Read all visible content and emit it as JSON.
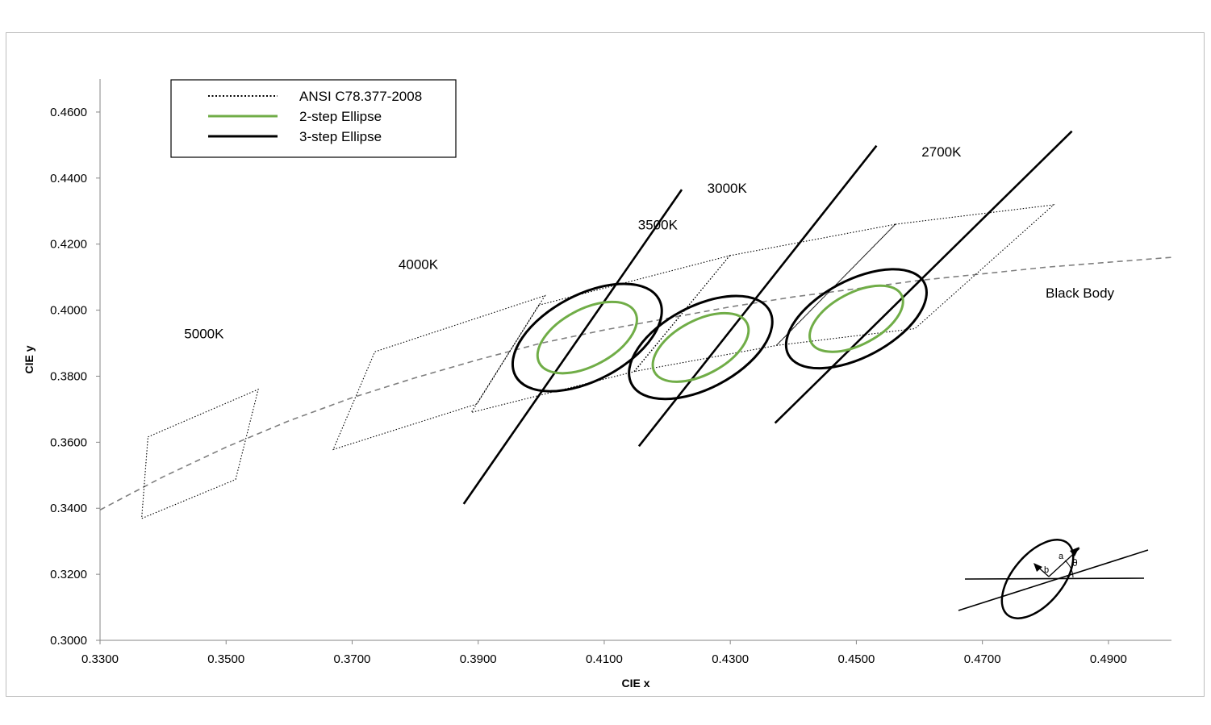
{
  "chart_data": {
    "type": "scatter",
    "title": "",
    "xlabel": "CIE x",
    "ylabel": "CIE y",
    "xlim": [
      0.33,
      0.5
    ],
    "ylim": [
      0.3,
      0.47
    ],
    "x_ticks": [
      "0.3300",
      "0.3500",
      "0.3700",
      "0.3900",
      "0.4100",
      "0.4300",
      "0.4500",
      "0.4700",
      "0.4900"
    ],
    "y_ticks": [
      "0.3000",
      "0.3200",
      "0.3400",
      "0.3600",
      "0.3800",
      "0.4000",
      "0.4200",
      "0.4400",
      "0.4600"
    ],
    "grid": false,
    "legend": {
      "placement": "top-left",
      "entries": [
        {
          "name": "ANSI C78.377-2008",
          "style": "dotted",
          "color": "#000000"
        },
        {
          "name": "2-step Ellipse",
          "style": "solid",
          "color": "#70ad47"
        },
        {
          "name": "3-step Ellipse",
          "style": "solid",
          "color": "#000000"
        }
      ]
    },
    "black_body_label": "Black Body",
    "black_body_curve": [
      [
        0.33,
        0.3395
      ],
      [
        0.34,
        0.3495
      ],
      [
        0.35,
        0.3585
      ],
      [
        0.36,
        0.3665
      ],
      [
        0.37,
        0.3735
      ],
      [
        0.38,
        0.3795
      ],
      [
        0.39,
        0.385
      ],
      [
        0.4,
        0.39
      ],
      [
        0.41,
        0.394
      ],
      [
        0.42,
        0.3975
      ],
      [
        0.43,
        0.401
      ],
      [
        0.44,
        0.404
      ],
      [
        0.45,
        0.4065
      ],
      [
        0.46,
        0.409
      ],
      [
        0.47,
        0.411
      ],
      [
        0.48,
        0.413
      ],
      [
        0.49,
        0.4145
      ],
      [
        0.5,
        0.416
      ]
    ],
    "ansi_quadrangles": [
      {
        "label": "5000K",
        "label_at": [
          0.3465,
          0.3915
        ],
        "points": [
          [
            0.3376,
            0.3616
          ],
          [
            0.3551,
            0.376
          ],
          [
            0.3515,
            0.3487
          ],
          [
            0.3366,
            0.3369
          ]
        ]
      },
      {
        "label": "4000K",
        "label_at": [
          0.3805,
          0.4125
        ],
        "points": [
          [
            0.3736,
            0.3874
          ],
          [
            0.4006,
            0.4044
          ],
          [
            0.3898,
            0.3716
          ],
          [
            0.367,
            0.3578
          ]
        ]
      },
      {
        "label": "3500K",
        "label_at": [
          0.4185,
          0.4245
        ],
        "points": [
          [
            0.3996,
            0.4015
          ],
          [
            0.4299,
            0.4165
          ],
          [
            0.4148,
            0.3814
          ],
          [
            0.3889,
            0.369
          ]
        ]
      },
      {
        "label": "3000K",
        "label_at": [
          0.4295,
          0.4355
        ],
        "points": [
          [
            0.4299,
            0.4165
          ],
          [
            0.4562,
            0.426
          ],
          [
            0.4373,
            0.3893
          ],
          [
            0.4147,
            0.3814
          ]
        ]
      },
      {
        "label": "2700K",
        "label_at": [
          0.4635,
          0.4465
        ],
        "points": [
          [
            0.4562,
            0.426
          ],
          [
            0.4813,
            0.4319
          ],
          [
            0.4593,
            0.3944
          ],
          [
            0.4373,
            0.3893
          ]
        ]
      }
    ],
    "cct_lines": [
      {
        "from": [
          0.3877,
          0.3413
        ],
        "to": [
          0.4223,
          0.4365
        ]
      },
      {
        "from": [
          0.4155,
          0.3588
        ],
        "to": [
          0.4532,
          0.4498
        ]
      },
      {
        "from": [
          0.4371,
          0.3658
        ],
        "to": [
          0.4842,
          0.4542
        ]
      }
    ],
    "ellipses": [
      {
        "center": [
          0.4073,
          0.3917
        ],
        "three_step": {
          "a": 0.0129,
          "b": 0.0068,
          "theta": 28
        },
        "two_step": {
          "a": 0.0086,
          "b": 0.0045,
          "theta": 28
        }
      },
      {
        "center": [
          0.4253,
          0.3887
        ],
        "three_step": {
          "a": 0.0124,
          "b": 0.0065,
          "theta": 28
        },
        "two_step": {
          "a": 0.0083,
          "b": 0.0043,
          "theta": 28
        }
      },
      {
        "center": [
          0.45,
          0.3974
        ],
        "three_step": {
          "a": 0.0122,
          "b": 0.0061,
          "theta": 28
        },
        "two_step": {
          "a": 0.0081,
          "b": 0.0041,
          "theta": 28
        }
      }
    ],
    "inset": {
      "a_label": "a",
      "b_label": "b",
      "theta_label": "θ"
    }
  }
}
